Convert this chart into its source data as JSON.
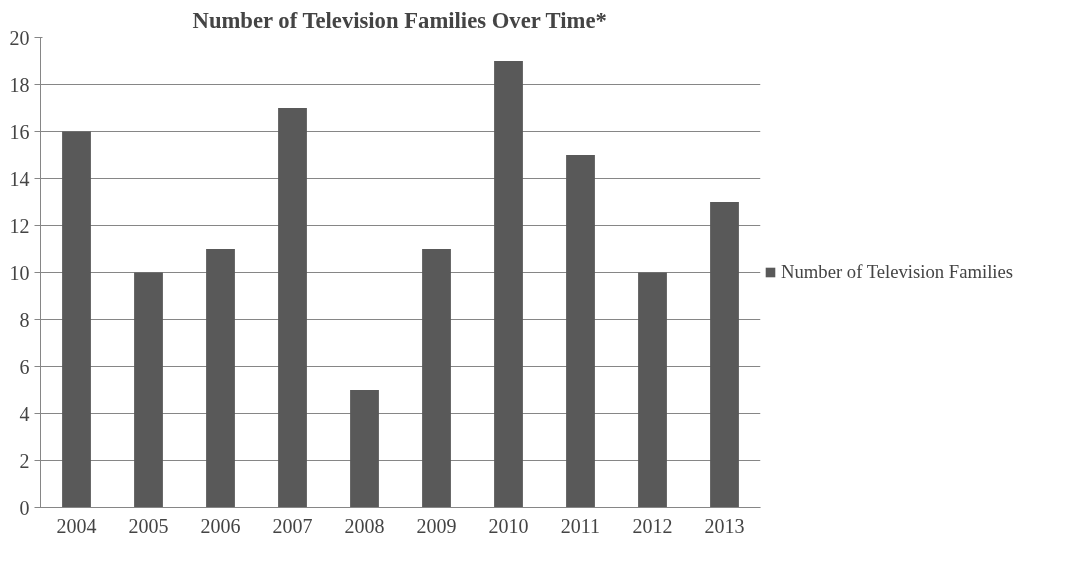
{
  "chart_data": {
    "type": "bar",
    "title": "Number of Television Families Over Time*",
    "categories": [
      "2004",
      "2005",
      "2006",
      "2007",
      "2008",
      "2009",
      "2010",
      "2011",
      "2012",
      "2013"
    ],
    "series": [
      {
        "name": "Number of Television Families",
        "color": "#595959",
        "values": [
          16,
          10,
          11,
          17,
          5,
          11,
          19,
          15,
          10,
          13
        ]
      }
    ],
    "ylim": [
      0,
      20
    ],
    "yticks": [
      0,
      2,
      4,
      6,
      8,
      10,
      12,
      14,
      16,
      18,
      20
    ],
    "grid": "y",
    "legend": "right"
  }
}
